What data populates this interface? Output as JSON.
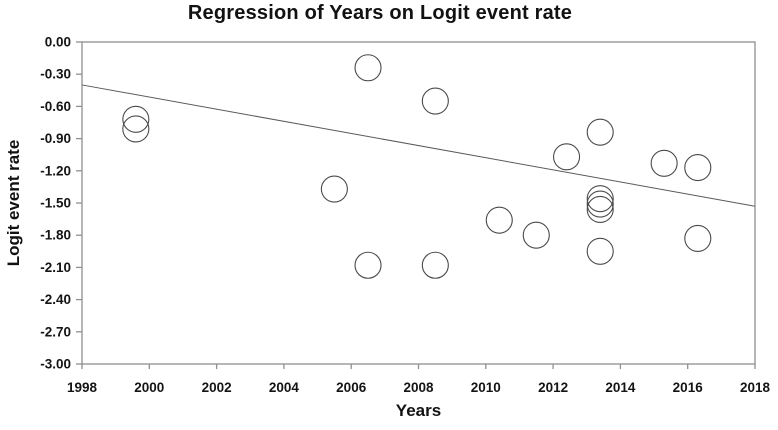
{
  "chart_data": {
    "type": "scatter",
    "title": "Regression of Years on Logit event rate",
    "xlabel": "Years",
    "ylabel": "Logit event rate",
    "xlim": [
      1998,
      2018
    ],
    "ylim": [
      -3.0,
      0.0
    ],
    "x_ticks": [
      1998,
      2000,
      2002,
      2004,
      2006,
      2008,
      2010,
      2012,
      2014,
      2016,
      2018
    ],
    "y_tick_labels": [
      "0.00",
      "-0.30",
      "-0.60",
      "-0.90",
      "-1.20",
      "-1.50",
      "-1.80",
      "-2.10",
      "-2.40",
      "-2.70",
      "-3.00"
    ],
    "grid": false,
    "legend": null,
    "marker": {
      "shape": "open-circle",
      "radius_px": 13
    },
    "points": [
      {
        "x": 1999.6,
        "y": -0.72
      },
      {
        "x": 1999.6,
        "y": -0.81
      },
      {
        "x": 2005.5,
        "y": -1.37
      },
      {
        "x": 2006.5,
        "y": -0.24
      },
      {
        "x": 2006.5,
        "y": -2.08
      },
      {
        "x": 2008.5,
        "y": -0.55
      },
      {
        "x": 2008.5,
        "y": -2.08
      },
      {
        "x": 2010.4,
        "y": -1.66
      },
      {
        "x": 2011.5,
        "y": -1.8
      },
      {
        "x": 2012.4,
        "y": -1.07
      },
      {
        "x": 2013.4,
        "y": -0.84
      },
      {
        "x": 2013.4,
        "y": -1.46
      },
      {
        "x": 2013.4,
        "y": -1.51
      },
      {
        "x": 2013.4,
        "y": -1.56
      },
      {
        "x": 2013.4,
        "y": -1.95
      },
      {
        "x": 2015.3,
        "y": -1.13
      },
      {
        "x": 2016.3,
        "y": -1.17
      },
      {
        "x": 2016.3,
        "y": -1.83
      }
    ],
    "regression_line": {
      "x1": 1998,
      "y1": -0.4,
      "x2": 2018,
      "y2": -1.53
    },
    "colors": {
      "axis": "#8f8f8f",
      "tick": "#8f8f8f",
      "text": "#141414",
      "regression_line": "#5a5a5a",
      "marker_stroke": "#4a4a4a",
      "background": "#ffffff"
    }
  }
}
